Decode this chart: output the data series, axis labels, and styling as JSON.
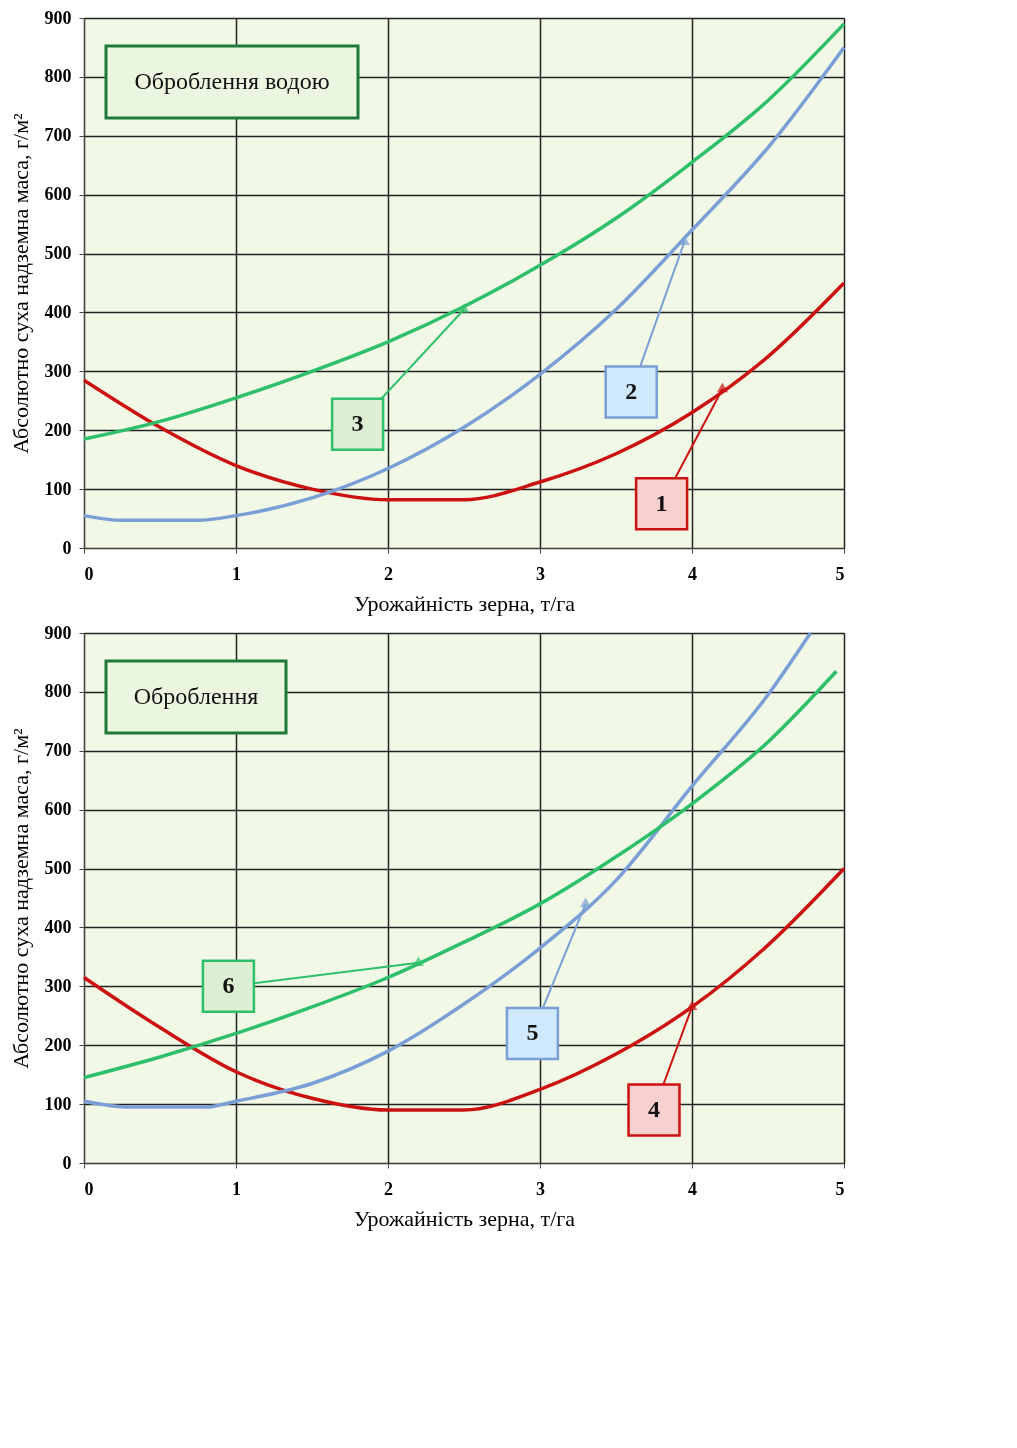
{
  "chart_data": [
    {
      "type": "line",
      "title": "Оброблення водою",
      "xlabel": "Урожайність зерна, т/га",
      "ylabel": "Абсолютно суха  надземна маса, г/м²",
      "xlim": [
        0,
        5
      ],
      "ylim": [
        0,
        900
      ],
      "xticks": [
        0,
        1,
        2,
        3,
        4,
        5
      ],
      "yticks": [
        0,
        100,
        200,
        300,
        400,
        500,
        600,
        700,
        800,
        900
      ],
      "grid": true,
      "series": [
        {
          "color": "#cc1111",
          "x": [
            0,
            0.5,
            1,
            1.5,
            2,
            2.5,
            3,
            3.5,
            4,
            4.5,
            5
          ],
          "values": [
            285,
            205,
            140,
            100,
            82,
            82,
            112,
            160,
            230,
            325,
            450
          ]
        },
        {
          "color": "#7a9fd6",
          "x": [
            0,
            0.25,
            0.75,
            1,
            1.5,
            2,
            2.5,
            3,
            3.5,
            4,
            4.5,
            5
          ],
          "values": [
            55,
            47,
            47,
            55,
            85,
            135,
            205,
            295,
            405,
            540,
            680,
            850
          ]
        },
        {
          "color": "#2dbf6a",
          "x": [
            0,
            0.5,
            1,
            1.5,
            2,
            2.5,
            3,
            3.5,
            4,
            4.5,
            5
          ],
          "values": [
            185,
            215,
            255,
            300,
            350,
            410,
            480,
            560,
            655,
            760,
            890
          ]
        }
      ],
      "annotations": [
        {
          "text": "1",
          "x": 4.2,
          "y": 270
        },
        {
          "text": "2",
          "x": 3.95,
          "y": 520
        },
        {
          "text": "3",
          "x": 2.5,
          "y": 405
        }
      ]
    },
    {
      "type": "line",
      "title": "Оброблення",
      "xlabel": "Урожайність зерна, т/га",
      "ylabel": "Абсолютно суха  надземна маса, г/м²",
      "xlim": [
        0,
        5
      ],
      "ylim": [
        0,
        900
      ],
      "xticks": [
        0,
        1,
        2,
        3,
        4,
        5
      ],
      "yticks": [
        0,
        100,
        200,
        300,
        400,
        500,
        600,
        700,
        800,
        900
      ],
      "grid": true,
      "series": [
        {
          "color": "#cc1111",
          "x": [
            0,
            0.5,
            1,
            1.5,
            2,
            2.5,
            3,
            3.5,
            4,
            4.5,
            5
          ],
          "values": [
            315,
            230,
            155,
            110,
            90,
            90,
            125,
            185,
            265,
            370,
            500
          ]
        },
        {
          "color": "#7a9fd6",
          "x": [
            0,
            0.3,
            0.8,
            1,
            1.5,
            2,
            2.5,
            3,
            3.5,
            4,
            4.5,
            4.78
          ],
          "values": [
            105,
            95,
            95,
            105,
            135,
            190,
            270,
            365,
            480,
            640,
            795,
            900
          ]
        },
        {
          "color": "#2dbf6a",
          "x": [
            0,
            0.5,
            1,
            1.5,
            2,
            2.5,
            3,
            3.5,
            4,
            4.5,
            4.95
          ],
          "values": [
            145,
            180,
            220,
            265,
            315,
            375,
            440,
            520,
            610,
            715,
            835
          ]
        }
      ],
      "annotations": [
        {
          "text": "4",
          "x": 4.0,
          "y": 265
        },
        {
          "text": "5",
          "x": 3.3,
          "y": 440
        },
        {
          "text": "6",
          "x": 2.2,
          "y": 340
        }
      ]
    }
  ]
}
